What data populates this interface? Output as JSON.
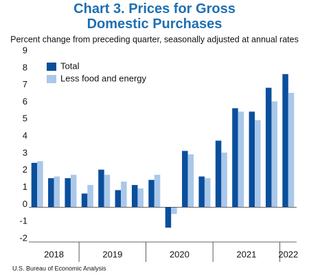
{
  "chart_data": {
    "type": "bar",
    "title": "Chart 3. Prices for Gross Domestic Purchases",
    "subtitle": "Percent change from preceding quarter, seasonally adjusted at annual rates",
    "source": "U.S. Bureau of Economic Analysis",
    "categories": [
      null,
      null,
      null,
      null,
      null,
      null,
      null,
      null,
      null,
      null,
      null,
      null,
      null,
      null,
      null,
      null
    ],
    "year_groups": [
      {
        "label": "2018",
        "start": 0,
        "count": 3
      },
      {
        "label": "2019",
        "start": 3,
        "count": 4
      },
      {
        "label": "2020",
        "start": 7,
        "count": 4
      },
      {
        "label": "2021",
        "start": 11,
        "count": 4
      },
      {
        "label": "2022",
        "start": 15,
        "count": 1
      }
    ],
    "series": [
      {
        "name": "Total",
        "color": "#0a4f9c",
        "values": [
          2.6,
          1.7,
          1.7,
          0.8,
          2.2,
          1.0,
          1.3,
          1.6,
          -1.2,
          3.3,
          1.8,
          3.9,
          5.8,
          5.6,
          7.0,
          7.8
        ]
      },
      {
        "name": "Less food and energy",
        "color": "#a9c8ea",
        "values": [
          2.7,
          1.8,
          1.9,
          1.3,
          1.9,
          1.5,
          1.1,
          1.9,
          -0.4,
          3.1,
          1.7,
          3.2,
          5.6,
          5.1,
          6.2,
          6.7
        ]
      }
    ],
    "ylim": [
      -2,
      9
    ],
    "yticks": [
      -2,
      -1,
      0,
      1,
      2,
      3,
      4,
      5,
      6,
      7,
      8,
      9
    ],
    "grid": false,
    "legend": "upper left"
  }
}
